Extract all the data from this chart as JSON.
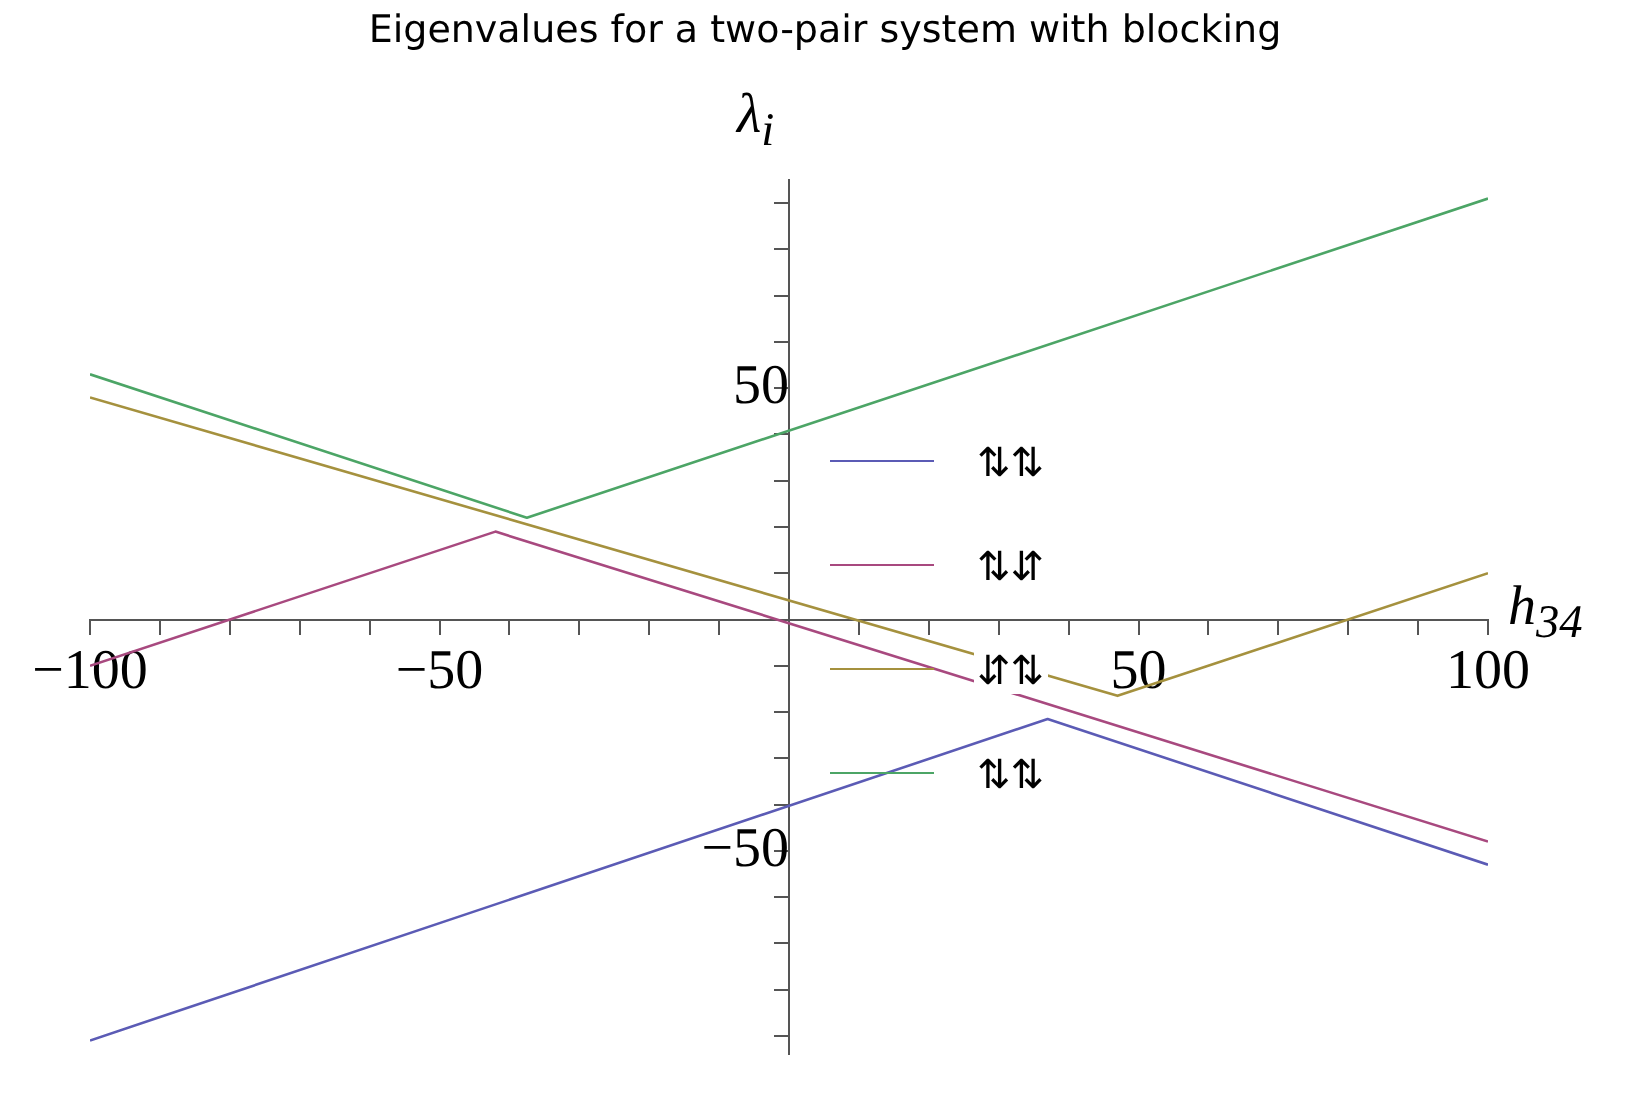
{
  "chart_data": {
    "type": "line",
    "title": "Eigenvalues for a two-pair system with blocking",
    "xlabel": "h$_{34}$",
    "ylabel": "λ$_{i}$",
    "xlim": [
      -100,
      100
    ],
    "ylim": [
      -94,
      95
    ],
    "xticks": [
      {
        "value": -100,
        "label": "−100"
      },
      {
        "value": -90,
        "label": null
      },
      {
        "value": -80,
        "label": null
      },
      {
        "value": -70,
        "label": null
      },
      {
        "value": -60,
        "label": null
      },
      {
        "value": -50,
        "label": "−50"
      },
      {
        "value": -40,
        "label": null
      },
      {
        "value": -30,
        "label": null
      },
      {
        "value": -20,
        "label": null
      },
      {
        "value": -10,
        "label": null
      },
      {
        "value": 10,
        "label": null
      },
      {
        "value": 20,
        "label": null
      },
      {
        "value": 30,
        "label": null
      },
      {
        "value": 40,
        "label": null
      },
      50,
      {
        "value": 60,
        "label": null
      },
      {
        "value": 70,
        "label": null
      },
      {
        "value": 80,
        "label": null
      },
      {
        "value": 90,
        "label": null
      },
      100
    ],
    "yticks": [
      {
        "value": -90,
        "label": null
      },
      {
        "value": -80,
        "label": null
      },
      {
        "value": -70,
        "label": null
      },
      {
        "value": -60,
        "label": null
      },
      {
        "value": -50,
        "label": "−50"
      },
      {
        "value": -40,
        "label": null
      },
      {
        "value": -30,
        "label": null
      },
      {
        "value": -20,
        "label": null
      },
      {
        "value": -10,
        "label": null
      },
      {
        "value": 10,
        "label": null
      },
      {
        "value": 20,
        "label": null
      },
      {
        "value": 30,
        "label": null
      },
      {
        "value": 40,
        "label": null
      },
      50,
      {
        "value": 60,
        "label": null
      },
      {
        "value": 70,
        "label": null
      },
      {
        "value": 80,
        "label": null
      },
      {
        "value": 90,
        "label": null
      }
    ],
    "grid": false,
    "legend": "center",
    "marker": "none",
    "line_style": "solid",
    "series": [
      {
        "name": "⇅⇅",
        "color": "#5b5bb5",
        "x": [
          -100,
          37,
          100
        ],
        "values": [
          -91,
          -21.5,
          -53
        ]
      },
      {
        "name": "⇅⇵",
        "color": "#a8497f",
        "x": [
          -100,
          -42,
          100
        ],
        "values": [
          -10,
          19,
          -48
        ]
      },
      {
        "name": "⇵⇅",
        "color": "#a5913e",
        "x": [
          -100,
          47,
          100
        ],
        "values": [
          48,
          -16.5,
          10
        ]
      },
      {
        "name": "⇅⇅",
        "color": "#4ca566",
        "x": [
          -100,
          -37.5,
          100
        ],
        "values": [
          53,
          22,
          91
        ]
      }
    ]
  }
}
